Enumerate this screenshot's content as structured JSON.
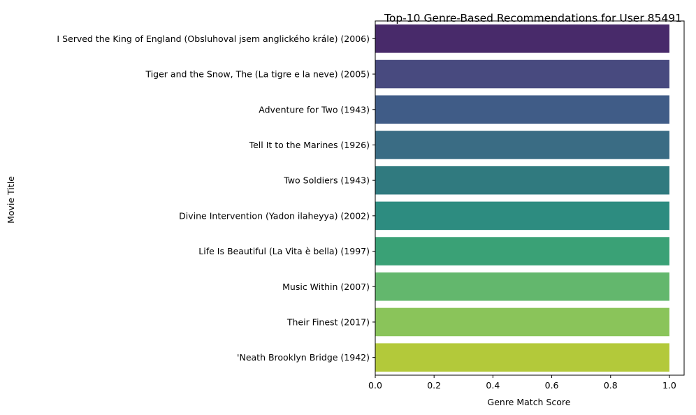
{
  "chart_data": {
    "type": "bar",
    "orientation": "horizontal",
    "title": "Top-10 Genre-Based Recommendations for User 85491",
    "xlabel": "Genre Match Score",
    "ylabel": "Movie Title",
    "xlim": [
      0,
      1.05
    ],
    "x_ticks": [
      "0.0",
      "0.2",
      "0.4",
      "0.6",
      "0.8",
      "1.0"
    ],
    "x_tick_values": [
      0,
      0.2,
      0.4,
      0.6,
      0.8,
      1.0
    ],
    "grid": false,
    "legend": "none",
    "palette": "viridis",
    "categories": [
      "I Served the King of England (Obsluhoval jsem anglického krále) (2006)",
      "Tiger and the Snow, The (La tigre e la neve) (2005)",
      "Adventure for Two (1943)",
      "Tell It to the Marines (1926)",
      "Two Soldiers (1943)",
      "Divine Intervention (Yadon ilaheyya) (2002)",
      "Life Is Beautiful (La Vita è bella) (1997)",
      "Music Within (2007)",
      "Their Finest (2017)",
      "'Neath Brooklyn Bridge (1942)"
    ],
    "values": [
      1.0,
      1.0,
      1.0,
      1.0,
      1.0,
      1.0,
      1.0,
      1.0,
      1.0,
      1.0
    ],
    "colors": [
      "#482a6a",
      "#484a7f",
      "#405c87",
      "#3a6c84",
      "#307a7f",
      "#2d8c80",
      "#3aa176",
      "#63b76d",
      "#8ac45a",
      "#b3c93a"
    ]
  }
}
